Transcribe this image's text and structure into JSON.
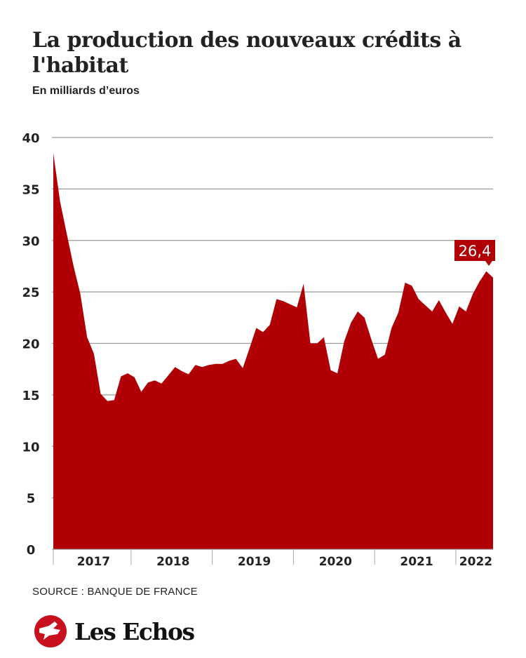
{
  "header": {
    "title": "La production des nouveaux crédits à l'habitat",
    "subtitle": "En milliards d’euros"
  },
  "chart_data": {
    "type": "area",
    "title": "La production des nouveaux crédits à l'habitat",
    "ylabel": "En milliards d’euros",
    "xlabel": "",
    "ylim": [
      0,
      40
    ],
    "yticks": [
      "0",
      "5",
      "10",
      "15",
      "20",
      "25",
      "30",
      "35",
      "40"
    ],
    "xtick_labels": [
      "2017",
      "2018",
      "2019",
      "2020",
      "2021",
      "2022"
    ],
    "grid": true,
    "frequency": "monthly",
    "x_start": "2017-01",
    "x_end": "2022-06",
    "values": [
      38.5,
      33.8,
      30.6,
      27.5,
      24.8,
      20.6,
      19.0,
      15.1,
      14.4,
      14.5,
      16.8,
      17.1,
      16.7,
      15.3,
      16.2,
      16.4,
      16.1,
      16.9,
      17.7,
      17.3,
      17.0,
      17.9,
      17.7,
      17.9,
      18.0,
      18.0,
      18.3,
      18.5,
      17.6,
      19.5,
      21.5,
      21.1,
      21.8,
      24.3,
      24.1,
      23.8,
      23.5,
      25.8,
      20.0,
      20.0,
      20.6,
      17.4,
      17.1,
      20.2,
      22.0,
      23.1,
      22.5,
      20.4,
      18.5,
      18.9,
      21.5,
      23.0,
      25.9,
      25.6,
      24.3,
      23.7,
      23.1,
      24.2,
      23.0,
      21.9,
      23.6,
      23.1,
      24.8,
      26.0,
      27.0,
      26.4
    ],
    "annotation": "26,4",
    "color": "#b00006"
  },
  "footer": {
    "source": "SOURCE : BANQUE DE FRANCE",
    "logo_text": "Les Echos"
  }
}
